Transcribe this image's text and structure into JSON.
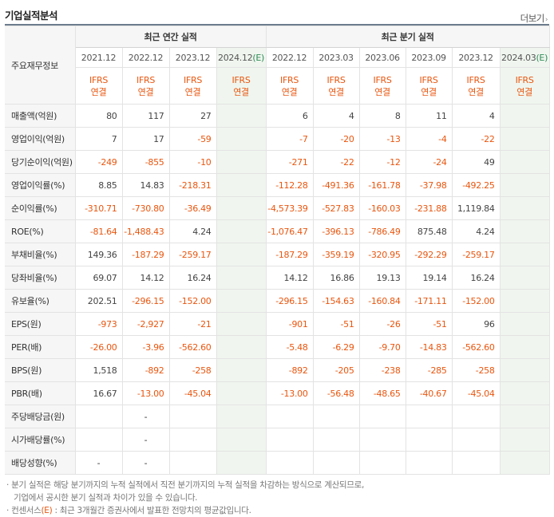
{
  "header": {
    "title": "기업실적분석",
    "more_label": "더보기",
    "more_icon": "chevron-right"
  },
  "table": {
    "row_header_label": "주요재무정보",
    "annual_group_label": "최근 연간 실적",
    "quarter_group_label": "최근 분기 실적",
    "annual_periods": [
      "2021.12",
      "2022.12",
      "2023.12",
      "2024.12"
    ],
    "quarter_periods": [
      "2022.12",
      "2023.03",
      "2023.06",
      "2023.09",
      "2023.12",
      "2024.03"
    ],
    "estimate_mark": "(E)",
    "ifrs_line1": "IFRS",
    "ifrs_line2": "연결",
    "rows": [
      {
        "label": "매출액(억원)",
        "annual": [
          "80",
          "117",
          "27",
          ""
        ],
        "quarter": [
          "6",
          "4",
          "8",
          "11",
          "4",
          ""
        ]
      },
      {
        "label": "영업이익(억원)",
        "annual": [
          "7",
          "17",
          "-59",
          ""
        ],
        "quarter": [
          "-7",
          "-20",
          "-13",
          "-4",
          "-22",
          ""
        ]
      },
      {
        "label": "당기순이익(억원)",
        "annual": [
          "-249",
          "-855",
          "-10",
          ""
        ],
        "quarter": [
          "-271",
          "-22",
          "-12",
          "-24",
          "49",
          ""
        ]
      },
      {
        "label": "영업이익률(%)",
        "annual": [
          "8.85",
          "14.83",
          "-218.31",
          ""
        ],
        "quarter": [
          "-112.28",
          "-491.36",
          "-161.78",
          "-37.98",
          "-492.25",
          ""
        ]
      },
      {
        "label": "순이익률(%)",
        "annual": [
          "-310.71",
          "-730.80",
          "-36.49",
          ""
        ],
        "quarter": [
          "-4,573.39",
          "-527.83",
          "-160.03",
          "-231.88",
          "1,119.84",
          ""
        ]
      },
      {
        "label": "ROE(%)",
        "annual": [
          "-81.64",
          "-1,488.43",
          "4.24",
          ""
        ],
        "quarter": [
          "-1,076.47",
          "-396.13",
          "-786.49",
          "875.48",
          "4.24",
          ""
        ]
      },
      {
        "label": "부채비율(%)",
        "annual": [
          "149.36",
          "-187.29",
          "-259.17",
          ""
        ],
        "quarter": [
          "-187.29",
          "-359.19",
          "-320.95",
          "-292.29",
          "-259.17",
          ""
        ]
      },
      {
        "label": "당좌비율(%)",
        "annual": [
          "69.07",
          "14.12",
          "16.24",
          ""
        ],
        "quarter": [
          "14.12",
          "16.86",
          "19.13",
          "19.14",
          "16.24",
          ""
        ]
      },
      {
        "label": "유보율(%)",
        "annual": [
          "202.51",
          "-296.15",
          "-152.00",
          ""
        ],
        "quarter": [
          "-296.15",
          "-154.63",
          "-160.84",
          "-171.11",
          "-152.00",
          ""
        ]
      },
      {
        "label": "EPS(원)",
        "annual": [
          "-973",
          "-2,927",
          "-21",
          ""
        ],
        "quarter": [
          "-901",
          "-51",
          "-26",
          "-51",
          "96",
          ""
        ]
      },
      {
        "label": "PER(배)",
        "annual": [
          "-26.00",
          "-3.96",
          "-562.60",
          ""
        ],
        "quarter": [
          "-5.48",
          "-6.29",
          "-9.70",
          "-14.83",
          "-562.60",
          ""
        ]
      },
      {
        "label": "BPS(원)",
        "annual": [
          "1,518",
          "-892",
          "-258",
          ""
        ],
        "quarter": [
          "-892",
          "-205",
          "-238",
          "-285",
          "-258",
          ""
        ]
      },
      {
        "label": "PBR(배)",
        "annual": [
          "16.67",
          "-13.00",
          "-45.04",
          ""
        ],
        "quarter": [
          "-13.00",
          "-56.48",
          "-48.65",
          "-40.67",
          "-45.04",
          ""
        ]
      },
      {
        "label": "주당배당금(원)",
        "annual": [
          "",
          "-",
          "",
          ""
        ],
        "quarter": [
          "",
          "",
          "",
          "",
          "",
          ""
        ]
      },
      {
        "label": "시가배당률(%)",
        "annual": [
          "",
          "-",
          "",
          ""
        ],
        "quarter": [
          "",
          "",
          "",
          "",
          "",
          ""
        ]
      },
      {
        "label": "배당성향(%)",
        "annual": [
          "-",
          "-",
          "",
          ""
        ],
        "quarter": [
          "",
          "",
          "",
          "",
          "",
          ""
        ]
      }
    ]
  },
  "notes": {
    "line1": "· 분기 실적은 해당 분기까지의 누적 실적에서 직전 분기까지의 누적 실적을 차감하는 방식으로 계산되므로,",
    "line2": "기업에서 공시한 분기 실적과 차이가 있을 수 있습니다.",
    "line3_prefix": "· 컨센서스",
    "line3_mark": "(E)",
    "line3_suffix": " : 최근 3개월간 증권사에서 발표한 전망치의 평균값입니다."
  },
  "colors": {
    "negative": "#e9560f",
    "estimate_bg": "#f0f6ef",
    "header_bg": "#f6f6f6",
    "title_rule": "#6d7c8e"
  }
}
